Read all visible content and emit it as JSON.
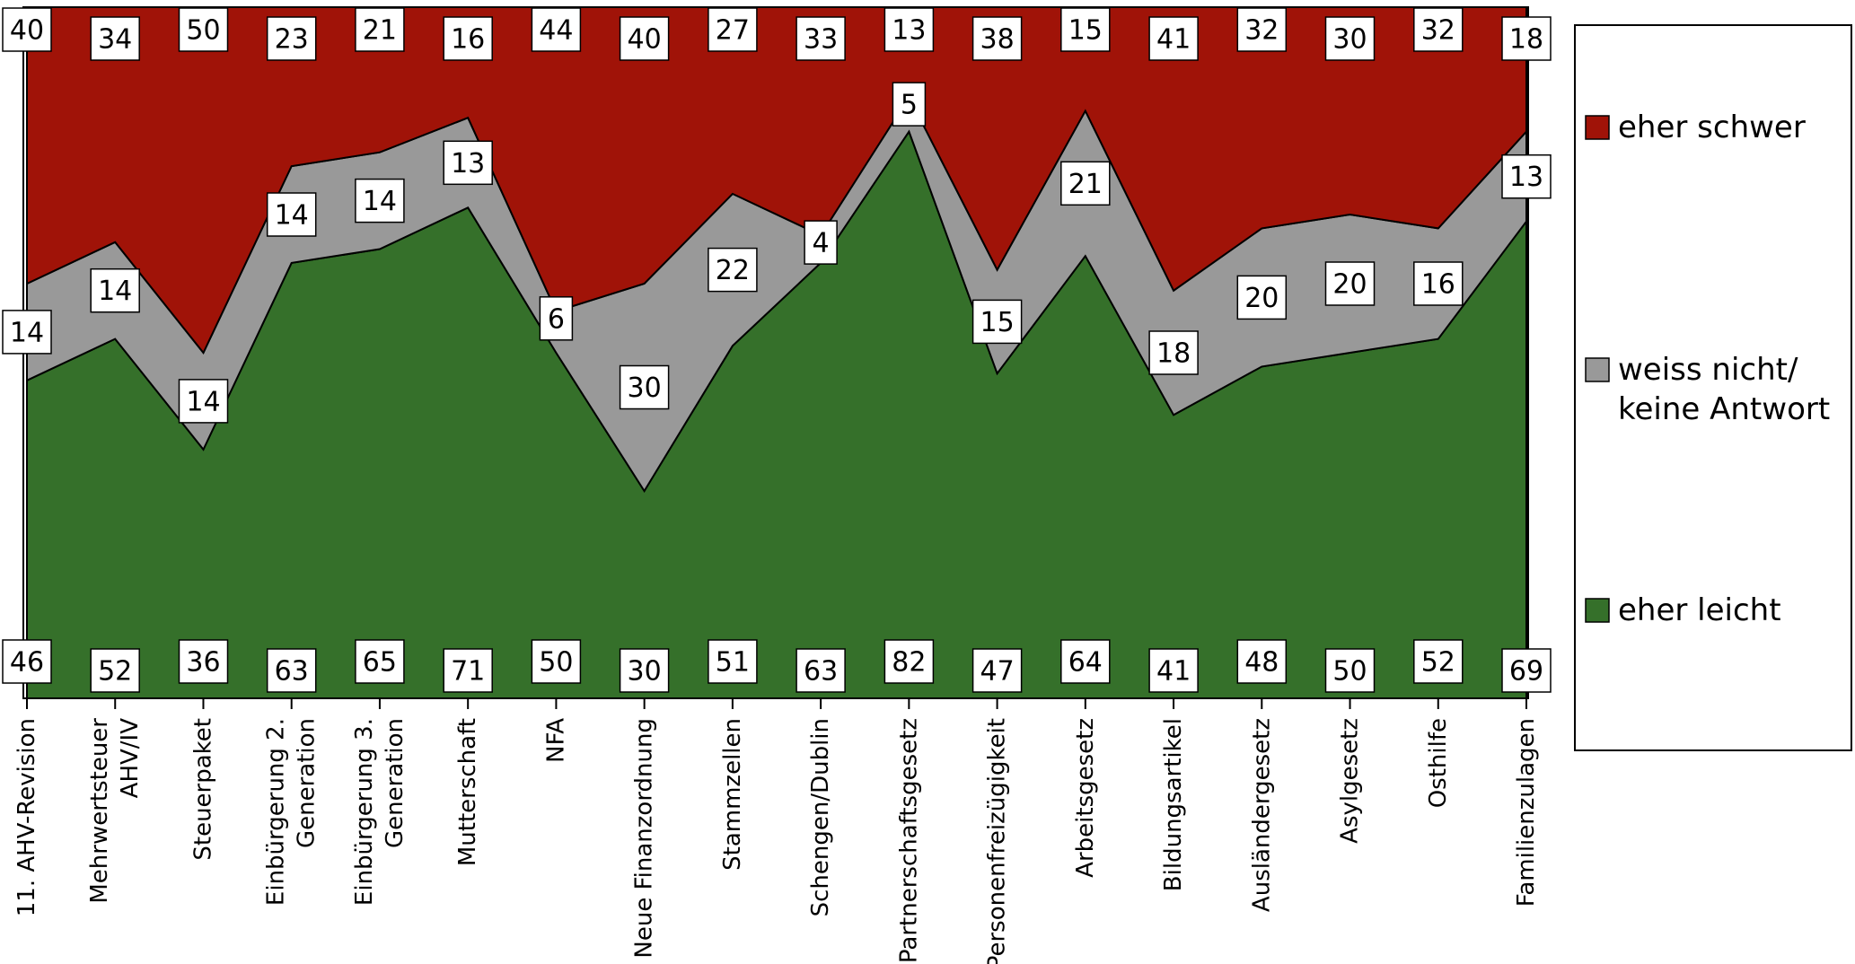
{
  "chart_data": {
    "type": "area",
    "stacked": "percent",
    "categories": [
      "11. AHV-Revision",
      "Mehrwertsteuer AHV/IV",
      "Steuerpaket",
      "Einbürgerung 2. Generation",
      "Einbürgerung 3. Generation",
      "Mutterschaft",
      "NFA",
      "Neue Finanzordnung",
      "Stammzellen",
      "Schengen/Dublin",
      "Partnerschaftsgesetz",
      "Personenfreizügigkeit",
      "Arbeitsgesetz",
      "Bildungsartikel",
      "Ausländergesetz",
      "Asylgesetz",
      "Osthilfe",
      "Familienzulagen"
    ],
    "category_lines": [
      [
        "11. AHV-Revision"
      ],
      [
        "Mehrwertsteuer",
        "AHV/IV"
      ],
      [
        "Steuerpaket"
      ],
      [
        "Einbürgerung 2.",
        "Generation"
      ],
      [
        "Einbürgerung 3.",
        "Generation"
      ],
      [
        "Mutterschaft"
      ],
      [
        "NFA"
      ],
      [
        "Neue Finanzordnung"
      ],
      [
        "Stammzellen"
      ],
      [
        "Schengen/Dublin"
      ],
      [
        "Partnerschaftsgesetz"
      ],
      [
        "Personenfreizügigkeit"
      ],
      [
        "Arbeitsgesetz"
      ],
      [
        "Bildungsartikel"
      ],
      [
        "Ausländergesetz"
      ],
      [
        "Asylgesetz"
      ],
      [
        "Osthilfe"
      ],
      [
        "Familienzulagen"
      ]
    ],
    "series": [
      {
        "name": "eher leicht",
        "color": "#35702a",
        "values": [
          46,
          52,
          36,
          63,
          65,
          71,
          50,
          30,
          51,
          63,
          82,
          47,
          64,
          41,
          48,
          50,
          52,
          69
        ]
      },
      {
        "name": "weiss nicht/ keine Antwort",
        "color": "#999999",
        "values": [
          14,
          14,
          14,
          14,
          14,
          13,
          6,
          30,
          22,
          4,
          5,
          15,
          21,
          18,
          20,
          20,
          16,
          13
        ]
      },
      {
        "name": "eher schwer",
        "color": "#a01308",
        "values": [
          40,
          34,
          50,
          23,
          21,
          16,
          44,
          40,
          27,
          33,
          13,
          38,
          15,
          41,
          32,
          30,
          32,
          18
        ]
      }
    ],
    "legend_order": [
      "eher schwer",
      "weiss nicht/ keine Antwort",
      "eher leicht"
    ],
    "legend_lines": {
      "eher schwer": [
        "eher schwer"
      ],
      "weiss nicht/ keine Antwort": [
        "weiss nicht/",
        "keine Antwort"
      ],
      "eher leicht": [
        "eher leicht"
      ]
    },
    "legend_position": "right",
    "ylim": [
      0,
      100
    ],
    "grid": false,
    "title": "",
    "xlabel": "",
    "ylabel": ""
  }
}
